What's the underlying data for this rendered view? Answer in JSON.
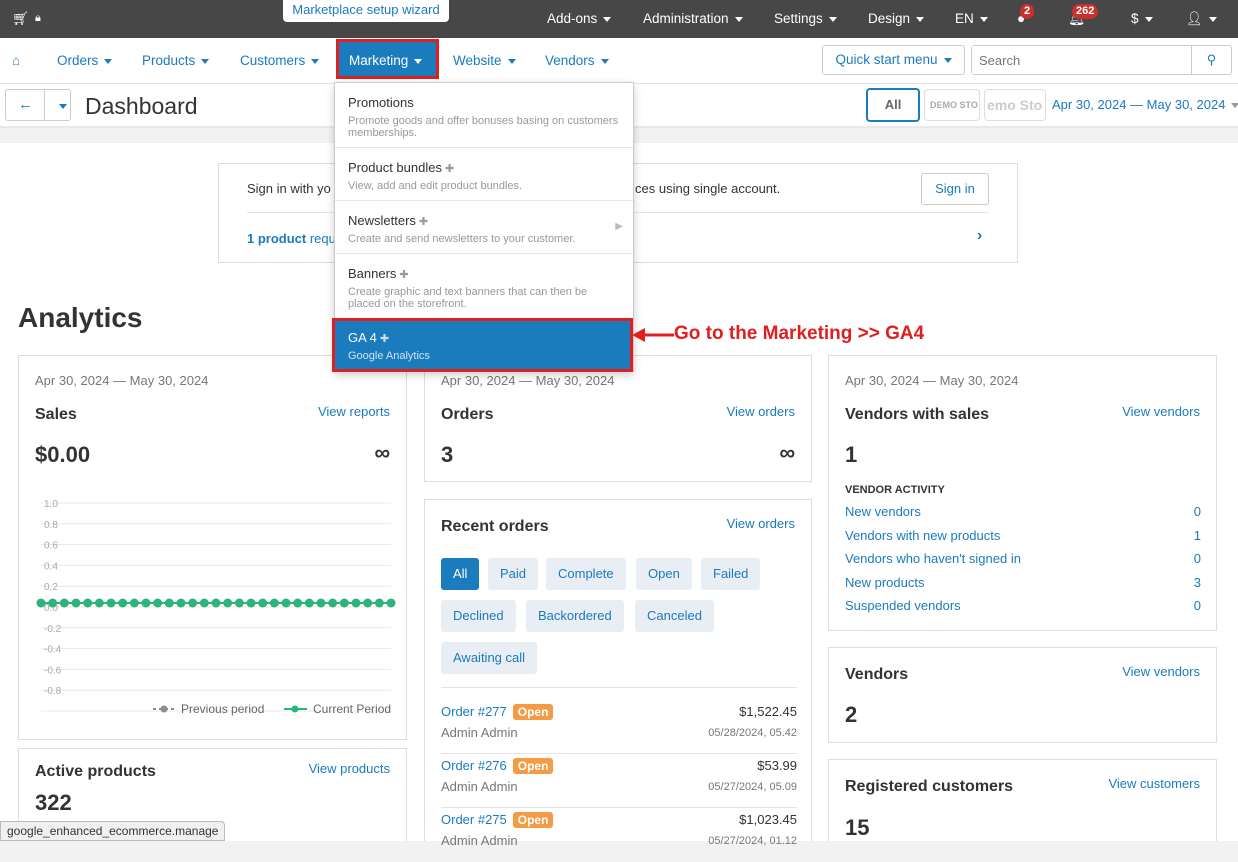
{
  "topbar": {
    "wizard": "Marketplace setup wizard",
    "items": [
      "Add-ons",
      "Administration",
      "Settings",
      "Design",
      "EN"
    ],
    "help_badge": "2",
    "notif_badge": "262",
    "currency": "$"
  },
  "nav": {
    "items": [
      "Orders",
      "Products",
      "Customers",
      "Marketing",
      "Website",
      "Vendors"
    ],
    "quick_start": "Quick start menu",
    "search_placeholder": "Search"
  },
  "subbar": {
    "title": "Dashboard",
    "all": "All",
    "store1": "DEMO STO",
    "store2": "emo Sto",
    "date_range": "Apr 30, 2024 — May 30, 2024"
  },
  "signin": {
    "text_left": "Sign in with yo",
    "text_right": "ces using single account.",
    "button": "Sign in",
    "req_bold": "1 product",
    "req_rest": " requ"
  },
  "menu": [
    {
      "title": "Promotions",
      "desc": "Promote goods and offer bonuses basing on customers memberships."
    },
    {
      "title": "Product bundles",
      "desc": "View, add and edit product bundles."
    },
    {
      "title": "Newsletters",
      "desc": "Create and send newsletters to your customer."
    },
    {
      "title": "Banners",
      "desc": "Create graphic and text banners that can then be placed on the storefront."
    },
    {
      "title": "GA 4",
      "desc": "Google Analytics"
    }
  ],
  "annotation": "Go to the Marketing >> GA4",
  "analytics": {
    "heading": "Analytics",
    "sales": {
      "date": "Apr 30, 2024 — May 30, 2024",
      "title": "Sales",
      "link": "View reports",
      "value": "$0.00",
      "inf": "∞"
    },
    "orders": {
      "date": "Apr 30, 2024 — May 30, 2024",
      "title": "Orders",
      "link": "View orders",
      "value": "3",
      "inf": "∞"
    },
    "vendors_sales": {
      "date": "Apr 30, 2024 — May 30, 2024",
      "title": "Vendors with sales",
      "link": "View vendors",
      "value": "1",
      "activity_title": "VENDOR ACTIVITY",
      "activity": [
        {
          "label": "New vendors",
          "value": "0"
        },
        {
          "label": "Vendors with new products",
          "value": "1"
        },
        {
          "label": "Vendors who haven't signed in",
          "value": "0"
        },
        {
          "label": "New products",
          "value": "3"
        },
        {
          "label": "Suspended vendors",
          "value": "0"
        }
      ]
    },
    "recent": {
      "title": "Recent orders",
      "link": "View orders",
      "filters": [
        "All",
        "Paid",
        "Complete",
        "Open",
        "Failed",
        "Declined",
        "Backordered",
        "Canceled",
        "Awaiting call"
      ],
      "orders": [
        {
          "id": "Order #277",
          "status": "Open",
          "customer": "Admin Admin",
          "total": "$1,522.45",
          "date": "05/28/2024, 05.42"
        },
        {
          "id": "Order #276",
          "status": "Open",
          "customer": "Admin Admin",
          "total": "$53.99",
          "date": "05/27/2024, 05.09"
        },
        {
          "id": "Order #275",
          "status": "Open",
          "customer": "Admin Admin",
          "total": "$1,023.45",
          "date": "05/27/2024, 01.12"
        }
      ]
    },
    "vendors": {
      "title": "Vendors",
      "link": "View vendors",
      "value": "2"
    },
    "active": {
      "title": "Active products",
      "link": "View products",
      "value": "322"
    },
    "customers": {
      "title": "Registered customers",
      "link": "View customers",
      "value": "15"
    }
  },
  "status_url": "google_enhanced_ecommerce.manage",
  "chart_data": {
    "type": "line",
    "ylim": [
      -1.0,
      1.0
    ],
    "yticks": [
      "1.0",
      "0.8",
      "0.6",
      "0.4",
      "0.2",
      "0.0",
      "-0.2",
      "-0.4",
      "-0.6",
      "-0.8"
    ],
    "grid": true,
    "legend": "bottom-right",
    "series": [
      {
        "name": "Previous period",
        "color": "#8a8f96",
        "values": []
      },
      {
        "name": "Current Period",
        "color": "#2db37c",
        "values": [
          0,
          0,
          0,
          0,
          0,
          0,
          0,
          0,
          0,
          0,
          0,
          0,
          0,
          0,
          0,
          0,
          0,
          0,
          0,
          0,
          0,
          0,
          0,
          0,
          0,
          0,
          0,
          0,
          0,
          0,
          0
        ]
      }
    ]
  }
}
